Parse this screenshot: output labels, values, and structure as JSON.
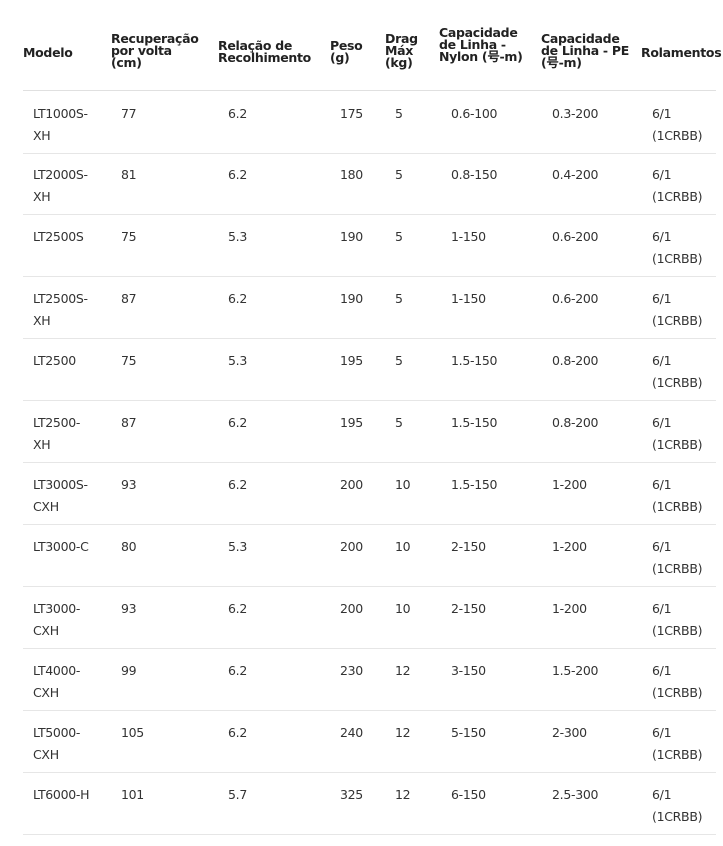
{
  "headers": [
    "Modelo",
    "Recuperação por volta (cm)",
    "Relação de Recolhimento",
    "Peso (g)",
    "Drag Máx (kg)",
    "Capacidade de Linha - Nylon (号-m)",
    "Capacidade de Linha - PE (号-m)",
    "Rolamentos"
  ],
  "rows": [
    [
      "LT1000S-XH",
      "77",
      "6.2",
      "175",
      "5",
      "0.6-100",
      "0.3-200",
      "6/1 (1CRBB)"
    ],
    [
      "LT2000S-XH",
      "81",
      "6.2",
      "180",
      "5",
      "0.8-150",
      "0.4-200",
      "6/1 (1CRBB)"
    ],
    [
      "LT2500S",
      "75",
      "5.3",
      "190",
      "5",
      "1-150",
      "0.6-200",
      "6/1 (1CRBB)"
    ],
    [
      "LT2500S-XH",
      "87",
      "6.2",
      "190",
      "5",
      "1-150",
      "0.6-200",
      "6/1 (1CRBB)"
    ],
    [
      "LT2500",
      "75",
      "5.3",
      "195",
      "5",
      "1.5-150",
      "0.8-200",
      "6/1 (1CRBB)"
    ],
    [
      "LT2500-XH",
      "87",
      "6.2",
      "195",
      "5",
      "1.5-150",
      "0.8-200",
      "6/1 (1CRBB)"
    ],
    [
      "LT3000S-CXH",
      "93",
      "6.2",
      "200",
      "10",
      "1.5-150",
      "1-200",
      "6/1 (1CRBB)"
    ],
    [
      "LT3000-C",
      "80",
      "5.3",
      "200",
      "10",
      "2-150",
      "1-200",
      "6/1 (1CRBB)"
    ],
    [
      "LT3000-CXH",
      "93",
      "6.2",
      "200",
      "10",
      "2-150",
      "1-200",
      "6/1 (1CRBB)"
    ],
    [
      "LT4000-CXH",
      "99",
      "6.2",
      "230",
      "12",
      "3-150",
      "1.5-200",
      "6/1 (1CRBB)"
    ],
    [
      "LT5000-CXH",
      "105",
      "6.2",
      "240",
      "12",
      "5-150",
      "2-300",
      "6/1 (1CRBB)"
    ],
    [
      "LT6000-H",
      "101",
      "5.7",
      "325",
      "12",
      "6-150",
      "2.5-300",
      "6/1 (1CRBB)"
    ]
  ]
}
